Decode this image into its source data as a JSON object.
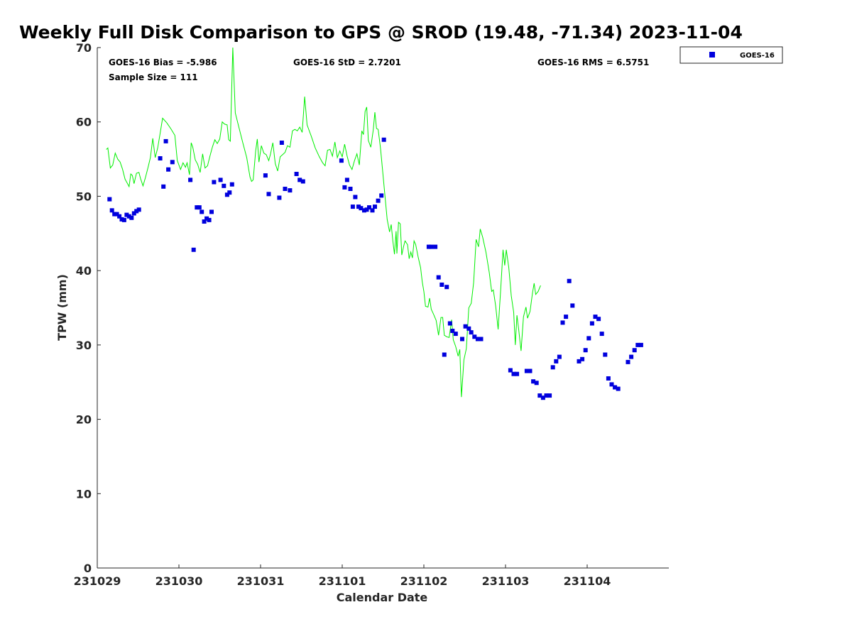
{
  "chart_data": {
    "type": "scatter+line",
    "title": "Weekly Full Disk Comparison to GPS @ SROD (19.48, -71.34) 2023-11-04",
    "xlabel": "Calendar Date",
    "ylabel": "TPW (mm)",
    "xlim": [
      0,
      7
    ],
    "ylim": [
      0,
      70
    ],
    "x_ticks": [
      {
        "value": 0,
        "label": "231029"
      },
      {
        "value": 1,
        "label": "231030"
      },
      {
        "value": 2,
        "label": "231031"
      },
      {
        "value": 3,
        "label": "231101"
      },
      {
        "value": 4,
        "label": "231102"
      },
      {
        "value": 5,
        "label": "231103"
      },
      {
        "value": 6,
        "label": "231104"
      }
    ],
    "y_ticks": [
      0,
      10,
      20,
      30,
      40,
      50,
      60,
      70
    ],
    "legend": {
      "position": "top-right-outside",
      "entries": [
        "GOES-16"
      ]
    },
    "stats": {
      "bias": "GOES-16 Bias = -5.986",
      "sample_size": "Sample Size = 111",
      "std": "GOES-16 StD = 2.7201",
      "rms": "GOES-16 RMS = 6.5751"
    },
    "series": [
      {
        "name": "GPS",
        "kind": "line",
        "color": "#00ee00",
        "points": [
          [
            0.11,
            56.3
          ],
          [
            0.13,
            56.5
          ],
          [
            0.16,
            53.8
          ],
          [
            0.19,
            54.2
          ],
          [
            0.22,
            55.8
          ],
          [
            0.25,
            55.0
          ],
          [
            0.28,
            54.6
          ],
          [
            0.31,
            53.6
          ],
          [
            0.34,
            52.3
          ],
          [
            0.37,
            51.7
          ],
          [
            0.39,
            51.3
          ],
          [
            0.41,
            53.0
          ],
          [
            0.43,
            52.8
          ],
          [
            0.45,
            51.7
          ],
          [
            0.48,
            53.1
          ],
          [
            0.51,
            53.2
          ],
          [
            0.53,
            52.4
          ],
          [
            0.56,
            51.4
          ],
          [
            0.59,
            52.5
          ],
          [
            0.62,
            53.8
          ],
          [
            0.65,
            55.2
          ],
          [
            0.68,
            57.8
          ],
          [
            0.71,
            55.2
          ],
          [
            0.74,
            56.5
          ],
          [
            0.77,
            58.5
          ],
          [
            0.8,
            60.5
          ],
          [
            0.85,
            59.9
          ],
          [
            0.9,
            59.1
          ],
          [
            0.95,
            58.2
          ],
          [
            0.98,
            54.8
          ],
          [
            1.02,
            53.6
          ],
          [
            1.05,
            54.5
          ],
          [
            1.08,
            53.9
          ],
          [
            1.1,
            54.5
          ],
          [
            1.13,
            52.9
          ],
          [
            1.15,
            57.2
          ],
          [
            1.17,
            56.6
          ],
          [
            1.2,
            54.9
          ],
          [
            1.23,
            54.3
          ],
          [
            1.26,
            53.2
          ],
          [
            1.29,
            55.7
          ],
          [
            1.32,
            53.8
          ],
          [
            1.35,
            54.1
          ],
          [
            1.38,
            55.4
          ],
          [
            1.41,
            56.6
          ],
          [
            1.44,
            57.6
          ],
          [
            1.47,
            57.1
          ],
          [
            1.5,
            57.7
          ],
          [
            1.53,
            60.0
          ],
          [
            1.56,
            59.7
          ],
          [
            1.59,
            59.6
          ],
          [
            1.61,
            57.6
          ],
          [
            1.63,
            57.4
          ],
          [
            1.66,
            70.0
          ],
          [
            1.69,
            61.2
          ],
          [
            1.73,
            59.5
          ],
          [
            1.78,
            57.3
          ],
          [
            1.83,
            55.2
          ],
          [
            1.87,
            52.6
          ],
          [
            1.89,
            52.0
          ],
          [
            1.91,
            52.2
          ],
          [
            1.94,
            56.1
          ],
          [
            1.96,
            57.7
          ],
          [
            1.98,
            54.6
          ],
          [
            2.01,
            56.8
          ],
          [
            2.04,
            55.8
          ],
          [
            2.07,
            55.6
          ],
          [
            2.1,
            54.8
          ],
          [
            2.12,
            55.6
          ],
          [
            2.15,
            57.2
          ],
          [
            2.18,
            54.4
          ],
          [
            2.21,
            53.4
          ],
          [
            2.24,
            55.3
          ],
          [
            2.27,
            55.6
          ],
          [
            2.3,
            55.9
          ],
          [
            2.33,
            56.8
          ],
          [
            2.36,
            56.6
          ],
          [
            2.39,
            58.8
          ],
          [
            2.42,
            59.0
          ],
          [
            2.45,
            58.8
          ],
          [
            2.48,
            59.3
          ],
          [
            2.51,
            58.6
          ],
          [
            2.54,
            63.4
          ],
          [
            2.57,
            59.6
          ],
          [
            2.62,
            58.1
          ],
          [
            2.67,
            56.5
          ],
          [
            2.72,
            55.3
          ],
          [
            2.76,
            54.5
          ],
          [
            2.79,
            54.1
          ],
          [
            2.82,
            56.2
          ],
          [
            2.85,
            56.3
          ],
          [
            2.88,
            55.4
          ],
          [
            2.91,
            57.3
          ],
          [
            2.94,
            55.2
          ],
          [
            2.97,
            56.1
          ],
          [
            3.0,
            55.3
          ],
          [
            3.03,
            57.0
          ],
          [
            3.06,
            55.4
          ],
          [
            3.09,
            54.2
          ],
          [
            3.12,
            53.6
          ],
          [
            3.15,
            54.8
          ],
          [
            3.18,
            55.7
          ],
          [
            3.21,
            54.2
          ],
          [
            3.24,
            58.8
          ],
          [
            3.26,
            58.3
          ],
          [
            3.28,
            61.4
          ],
          [
            3.3,
            62.0
          ],
          [
            3.32,
            57.5
          ],
          [
            3.35,
            56.6
          ],
          [
            3.38,
            58.9
          ],
          [
            3.4,
            61.3
          ],
          [
            3.42,
            59.1
          ],
          [
            3.44,
            59.0
          ],
          [
            3.47,
            56.4
          ],
          [
            3.51,
            51.6
          ],
          [
            3.55,
            46.9
          ],
          [
            3.58,
            45.2
          ],
          [
            3.6,
            46.2
          ],
          [
            3.62,
            44.0
          ],
          [
            3.64,
            42.2
          ],
          [
            3.66,
            45.3
          ],
          [
            3.67,
            42.3
          ],
          [
            3.69,
            46.5
          ],
          [
            3.71,
            46.3
          ],
          [
            3.73,
            42.1
          ],
          [
            3.75,
            43.2
          ],
          [
            3.77,
            44.0
          ],
          [
            3.8,
            43.5
          ],
          [
            3.82,
            41.6
          ],
          [
            3.84,
            42.5
          ],
          [
            3.86,
            41.7
          ],
          [
            3.88,
            44.0
          ],
          [
            3.9,
            43.5
          ],
          [
            3.93,
            41.8
          ],
          [
            3.96,
            40.4
          ],
          [
            3.98,
            38.5
          ],
          [
            4.0,
            37.2
          ],
          [
            4.02,
            35.2
          ],
          [
            4.05,
            35.1
          ],
          [
            4.07,
            36.3
          ],
          [
            4.09,
            34.8
          ],
          [
            4.12,
            34.1
          ],
          [
            4.15,
            33.3
          ],
          [
            4.18,
            31.3
          ],
          [
            4.21,
            33.7
          ],
          [
            4.23,
            33.7
          ],
          [
            4.25,
            31.3
          ],
          [
            4.28,
            31.1
          ],
          [
            4.31,
            31.0
          ],
          [
            4.34,
            33.4
          ],
          [
            4.36,
            30.7
          ],
          [
            4.39,
            29.8
          ],
          [
            4.42,
            28.5
          ],
          [
            4.44,
            29.4
          ],
          [
            4.46,
            23.0
          ],
          [
            4.49,
            28.0
          ],
          [
            4.52,
            29.5
          ],
          [
            4.55,
            35.0
          ],
          [
            4.58,
            35.6
          ],
          [
            4.61,
            38.4
          ],
          [
            4.64,
            44.2
          ],
          [
            4.67,
            43.2
          ],
          [
            4.69,
            45.6
          ],
          [
            4.72,
            44.5
          ],
          [
            4.76,
            42.5
          ],
          [
            4.8,
            39.8
          ],
          [
            4.83,
            37.2
          ],
          [
            4.85,
            37.4
          ],
          [
            4.88,
            35.2
          ],
          [
            4.91,
            32.1
          ],
          [
            4.94,
            37.3
          ],
          [
            4.97,
            42.8
          ],
          [
            4.99,
            40.7
          ],
          [
            5.01,
            42.8
          ],
          [
            5.04,
            40.4
          ],
          [
            5.07,
            36.6
          ],
          [
            5.1,
            34.4
          ],
          [
            5.12,
            30.0
          ],
          [
            5.14,
            34.0
          ],
          [
            5.16,
            32.2
          ],
          [
            5.19,
            29.2
          ],
          [
            5.22,
            33.8
          ],
          [
            5.25,
            35.1
          ],
          [
            5.27,
            33.6
          ],
          [
            5.3,
            34.5
          ],
          [
            5.33,
            37.0
          ],
          [
            5.35,
            38.3
          ],
          [
            5.37,
            36.8
          ],
          [
            5.4,
            37.2
          ],
          [
            5.43,
            38.0
          ]
        ]
      },
      {
        "name": "GOES-16",
        "kind": "scatter",
        "color": "#0000dd",
        "points": [
          [
            0.15,
            49.6
          ],
          [
            0.18,
            48.1
          ],
          [
            0.21,
            47.6
          ],
          [
            0.24,
            47.6
          ],
          [
            0.27,
            47.3
          ],
          [
            0.3,
            46.9
          ],
          [
            0.33,
            46.8
          ],
          [
            0.36,
            47.5
          ],
          [
            0.39,
            47.3
          ],
          [
            0.42,
            47.1
          ],
          [
            0.45,
            47.7
          ],
          [
            0.48,
            48.0
          ],
          [
            0.51,
            48.2
          ],
          [
            0.77,
            55.1
          ],
          [
            0.81,
            51.3
          ],
          [
            0.84,
            57.4
          ],
          [
            0.87,
            53.6
          ],
          [
            0.92,
            54.6
          ],
          [
            1.14,
            52.2
          ],
          [
            1.18,
            42.8
          ],
          [
            1.22,
            48.5
          ],
          [
            1.25,
            48.5
          ],
          [
            1.28,
            47.9
          ],
          [
            1.31,
            46.6
          ],
          [
            1.34,
            47.0
          ],
          [
            1.37,
            46.8
          ],
          [
            1.4,
            47.9
          ],
          [
            1.43,
            51.9
          ],
          [
            1.51,
            52.2
          ],
          [
            1.55,
            51.4
          ],
          [
            1.59,
            50.2
          ],
          [
            1.62,
            50.5
          ],
          [
            1.65,
            51.6
          ],
          [
            2.06,
            52.8
          ],
          [
            2.1,
            50.3
          ],
          [
            2.23,
            49.8
          ],
          [
            2.26,
            57.2
          ],
          [
            2.3,
            51.0
          ],
          [
            2.36,
            50.8
          ],
          [
            2.44,
            53.0
          ],
          [
            2.48,
            52.2
          ],
          [
            2.52,
            52.0
          ],
          [
            2.99,
            54.8
          ],
          [
            3.03,
            51.2
          ],
          [
            3.06,
            52.2
          ],
          [
            3.1,
            51.0
          ],
          [
            3.13,
            48.6
          ],
          [
            3.16,
            49.9
          ],
          [
            3.2,
            48.6
          ],
          [
            3.23,
            48.4
          ],
          [
            3.27,
            48.1
          ],
          [
            3.3,
            48.2
          ],
          [
            3.33,
            48.5
          ],
          [
            3.37,
            48.1
          ],
          [
            3.4,
            48.6
          ],
          [
            3.44,
            49.4
          ],
          [
            3.48,
            50.1
          ],
          [
            3.51,
            57.6
          ],
          [
            4.06,
            43.2
          ],
          [
            4.09,
            43.2
          ],
          [
            4.14,
            43.2
          ],
          [
            4.18,
            39.1
          ],
          [
            4.22,
            38.1
          ],
          [
            4.25,
            28.7
          ],
          [
            4.28,
            37.8
          ],
          [
            4.32,
            32.9
          ],
          [
            4.35,
            31.9
          ],
          [
            4.39,
            31.5
          ],
          [
            4.47,
            30.8
          ],
          [
            4.51,
            32.5
          ],
          [
            4.55,
            32.2
          ],
          [
            4.58,
            31.7
          ],
          [
            4.62,
            31.1
          ],
          [
            4.66,
            30.8
          ],
          [
            4.7,
            30.8
          ],
          [
            5.06,
            26.6
          ],
          [
            5.1,
            26.1
          ],
          [
            5.14,
            26.1
          ],
          [
            5.26,
            26.5
          ],
          [
            5.3,
            26.5
          ],
          [
            5.34,
            25.1
          ],
          [
            5.38,
            24.9
          ],
          [
            5.42,
            23.2
          ],
          [
            5.46,
            22.9
          ],
          [
            5.5,
            23.2
          ],
          [
            5.54,
            23.2
          ],
          [
            5.58,
            27.0
          ],
          [
            5.62,
            27.8
          ],
          [
            5.66,
            28.4
          ],
          [
            5.7,
            33.0
          ],
          [
            5.74,
            33.8
          ],
          [
            5.78,
            38.6
          ],
          [
            5.82,
            35.3
          ],
          [
            5.9,
            27.8
          ],
          [
            5.94,
            28.1
          ],
          [
            5.98,
            29.3
          ],
          [
            6.02,
            30.9
          ],
          [
            6.06,
            32.9
          ],
          [
            6.1,
            33.8
          ],
          [
            6.14,
            33.5
          ],
          [
            6.18,
            31.5
          ],
          [
            6.22,
            28.7
          ],
          [
            6.26,
            25.5
          ],
          [
            6.3,
            24.7
          ],
          [
            6.34,
            24.3
          ],
          [
            6.38,
            24.1
          ],
          [
            6.5,
            27.7
          ],
          [
            6.54,
            28.4
          ],
          [
            6.58,
            29.3
          ],
          [
            6.62,
            30.0
          ],
          [
            6.66,
            30.0
          ]
        ]
      }
    ]
  }
}
